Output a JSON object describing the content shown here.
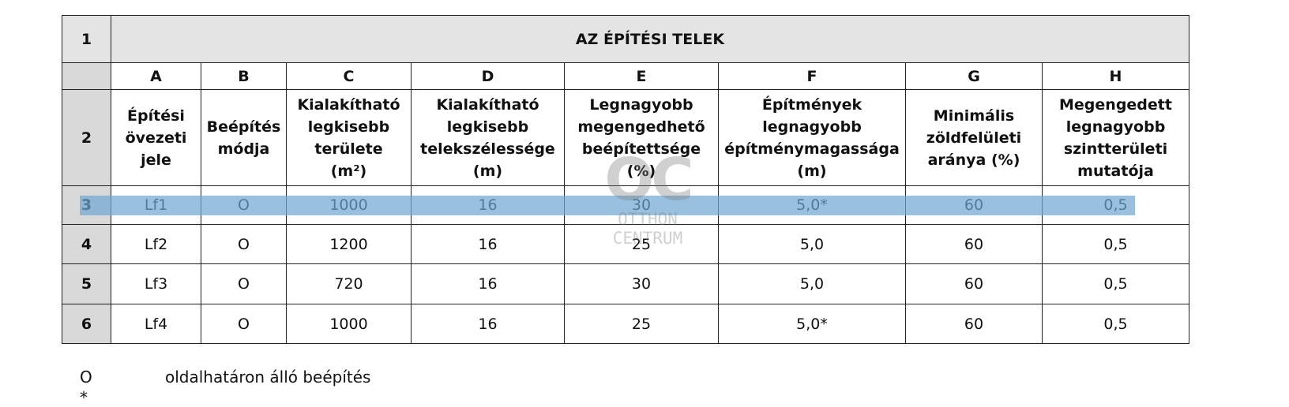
{
  "table": {
    "title": {
      "number": "1",
      "text": "AZ ÉPÍTÉSI TELEK"
    },
    "letters": [
      "A",
      "B",
      "C",
      "D",
      "E",
      "F",
      "G",
      "H"
    ],
    "header": {
      "number": "2",
      "cells": [
        [
          "Építési",
          "övezeti",
          "jele"
        ],
        [
          "Beépítés",
          "módja"
        ],
        [
          "Kialakítható",
          "legkisebb",
          "területe",
          "(m²)"
        ],
        [
          "Kialakítható",
          "legkisebb",
          "telekszélessége",
          "(m)"
        ],
        [
          "Legnagyobb",
          "megengedhető",
          "beépítettsége",
          "(%)"
        ],
        [
          "Építmények",
          "legnagyobb",
          "építménymagassága",
          "(m)"
        ],
        [
          "Minimális",
          "zöldfelületi",
          "aránya (%)"
        ],
        [
          "Megengedett",
          "legnagyobb",
          "szintterületi",
          "mutatója"
        ]
      ]
    },
    "rows": [
      [
        "3",
        "Lf1",
        "O",
        "1000",
        "16",
        "30",
        "5,0*",
        "60",
        "0,5"
      ],
      [
        "4",
        "Lf2",
        "O",
        "1200",
        "16",
        "25",
        "5,0",
        "60",
        "0,5"
      ],
      [
        "5",
        "Lf3",
        "O",
        "720",
        "16",
        "30",
        "5,0",
        "60",
        "0,5"
      ],
      [
        "6",
        "Lf4",
        "O",
        "1000",
        "16",
        "25",
        "5,0*",
        "60",
        "0,5"
      ]
    ]
  },
  "legend": [
    {
      "symbol": "O",
      "text": "oldalhatáron álló beépítés"
    },
    {
      "symbol": "*"
    }
  ],
  "watermark": {
    "logo": "OC",
    "lines": [
      "OTTHON",
      "CENTRUM"
    ]
  }
}
